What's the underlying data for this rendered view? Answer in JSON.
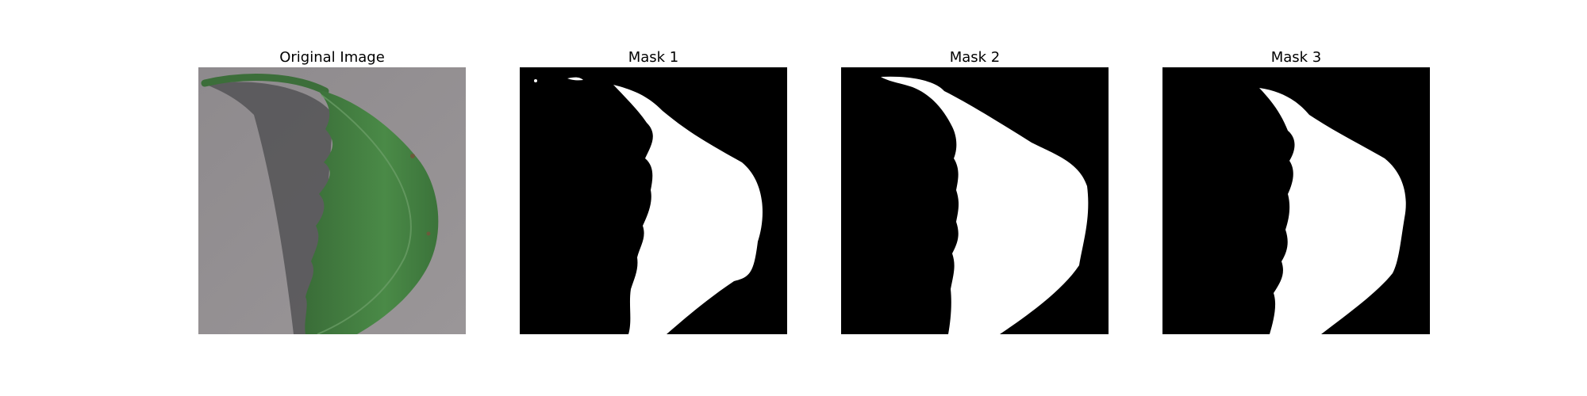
{
  "panels": [
    {
      "title": "Original Image"
    },
    {
      "title": "Mask 1"
    },
    {
      "title": "Mask 2"
    },
    {
      "title": "Mask 3"
    }
  ],
  "colors": {
    "background": "#909090",
    "leaf": "#3f7a3e",
    "leaf_dark": "#2f5f30",
    "shadow": "#4a4a4a",
    "mask_bg": "#000000",
    "mask_fg": "#ffffff"
  }
}
